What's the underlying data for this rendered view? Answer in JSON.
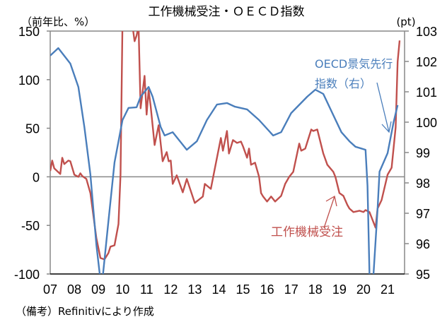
{
  "chart_data": {
    "type": "line",
    "title": "工作機械受注・ＯＥＣＤ指数",
    "ylabel_left": "（前年比、%）",
    "ylabel_right": "(pt)",
    "ylim_left": [
      -100,
      150
    ],
    "ylim_right": [
      95,
      103
    ],
    "yticks_left": [
      "150",
      "100",
      "50",
      "0",
      "-50",
      "-100"
    ],
    "yticks_right": [
      "103",
      "102",
      "101",
      "100",
      "99",
      "98",
      "97",
      "96",
      "95"
    ],
    "xticks": [
      "07",
      "08",
      "09",
      "10",
      "11",
      "12",
      "13",
      "14",
      "15",
      "16",
      "17",
      "18",
      "19",
      "20",
      "21"
    ],
    "footnote": "（備考）Refinitivにより作成",
    "grid": false,
    "series": [
      {
        "name": "工作機械受注",
        "axis": "left",
        "color": "#c0504d",
        "annotation": "工作機械受注",
        "points": [
          [
            "2007-01",
            6.0
          ],
          [
            "2007-02",
            16.7
          ],
          [
            "2007-03",
            8.7
          ],
          [
            "2007-06",
            2.9
          ],
          [
            "2007-07",
            19.6
          ],
          [
            "2007-08",
            13.1
          ],
          [
            "2007-10",
            16.7
          ],
          [
            "2007-11",
            16.0
          ],
          [
            "2008-01",
            2.2
          ],
          [
            "2008-03",
            0
          ],
          [
            "2008-04",
            3.6
          ],
          [
            "2008-05",
            0.7
          ],
          [
            "2008-07",
            -2.2
          ],
          [
            "2008-09",
            -16.7
          ],
          [
            "2008-12",
            -63.2
          ],
          [
            "2009-02",
            -83.6
          ],
          [
            "2009-04",
            -85.0
          ],
          [
            "2009-06",
            -78.5
          ],
          [
            "2009-07",
            -71.9
          ],
          [
            "2009-09",
            -70.5
          ],
          [
            "2009-11",
            -48.7
          ],
          [
            "2009-12",
            2.2
          ],
          [
            "2010-01",
            160
          ],
          [
            "2010-03",
            180
          ],
          [
            "2010-05",
            170
          ],
          [
            "2010-06",
            155
          ],
          [
            "2010-07",
            139.5
          ],
          [
            "2010-08",
            145.3
          ],
          [
            "2010-09",
            155
          ],
          [
            "2010-10",
            70.5
          ],
          [
            "2010-12",
            103.9
          ],
          [
            "2011-01",
            64.0
          ],
          [
            "2011-02",
            89.4
          ],
          [
            "2011-03",
            72.7
          ],
          [
            "2011-05",
            32.7
          ],
          [
            "2011-07",
            53.1
          ],
          [
            "2011-09",
            16.0
          ],
          [
            "2011-11",
            25.4
          ],
          [
            "2011-12",
            16.0
          ],
          [
            "2012-01",
            16.7
          ],
          [
            "2012-02",
            -7.3
          ],
          [
            "2012-04",
            1.5
          ],
          [
            "2012-07",
            -16.0
          ],
          [
            "2012-09",
            -2.2
          ],
          [
            "2013-01",
            -26.9
          ],
          [
            "2013-05",
            -20.3
          ],
          [
            "2013-06",
            -7.3
          ],
          [
            "2013-09",
            -12.4
          ],
          [
            "2013-11",
            8.7
          ],
          [
            "2014-02",
            40.0
          ],
          [
            "2014-03",
            26.9
          ],
          [
            "2014-05",
            47.2
          ],
          [
            "2014-06",
            24.0
          ],
          [
            "2014-08",
            37.8
          ],
          [
            "2014-10",
            34.9
          ],
          [
            "2014-12",
            36.3
          ],
          [
            "2015-01",
            31.3
          ],
          [
            "2015-03",
            19.6
          ],
          [
            "2015-04",
            29.1
          ],
          [
            "2015-05",
            12.4
          ],
          [
            "2015-07",
            14.5
          ],
          [
            "2015-09",
            0
          ],
          [
            "2015-10",
            -16.7
          ],
          [
            "2015-11",
            -20.3
          ],
          [
            "2016-01",
            -25.4
          ],
          [
            "2016-03",
            -20.3
          ],
          [
            "2016-05",
            -25.4
          ],
          [
            "2016-08",
            -19.6
          ],
          [
            "2016-10",
            -7.3
          ],
          [
            "2016-12",
            0
          ],
          [
            "2017-02",
            5.1
          ],
          [
            "2017-05",
            34.2
          ],
          [
            "2017-06",
            26.9
          ],
          [
            "2017-08",
            29.1
          ],
          [
            "2017-11",
            48.7
          ],
          [
            "2017-12",
            47.2
          ],
          [
            "2018-02",
            48.7
          ],
          [
            "2018-05",
            24.0
          ],
          [
            "2018-07",
            12.4
          ],
          [
            "2018-10",
            5.1
          ],
          [
            "2018-11",
            0
          ],
          [
            "2019-01",
            -16.7
          ],
          [
            "2019-03",
            -19.6
          ],
          [
            "2019-05",
            -29.1
          ],
          [
            "2019-06",
            -32.7
          ],
          [
            "2019-08",
            -36.3
          ],
          [
            "2019-11",
            -34.9
          ],
          [
            "2020-01",
            -36.3
          ],
          [
            "2020-02",
            -34.2
          ],
          [
            "2020-04",
            -36.3
          ],
          [
            "2020-07",
            -52.3
          ],
          [
            "2020-08",
            -32.7
          ],
          [
            "2020-10",
            -24.0
          ],
          [
            "2021-01",
            2.2
          ],
          [
            "2021-03",
            9.4
          ],
          [
            "2021-05",
            50.9
          ],
          [
            "2021-06",
            118.5
          ],
          [
            "2021-07",
            140.3
          ]
        ]
      },
      {
        "name": "OECD景気先行指数（右）",
        "axis": "right",
        "color": "#4a7ebb",
        "annotation_lines": [
          "OECD景気先行",
          "指数（右）"
        ],
        "points": [
          [
            "2007-01",
            102.19
          ],
          [
            "2007-05",
            102.44
          ],
          [
            "2007-11",
            101.93
          ],
          [
            "2008-03",
            101.16
          ],
          [
            "2008-06",
            99.84
          ],
          [
            "2008-09",
            98.28
          ],
          [
            "2008-12",
            95.95
          ],
          [
            "2009-02",
            94.8
          ],
          [
            "2009-03",
            94.8
          ],
          [
            "2009-06",
            96.74
          ],
          [
            "2009-09",
            98.67
          ],
          [
            "2010-01",
            100.07
          ],
          [
            "2010-04",
            100.47
          ],
          [
            "2010-08",
            100.49
          ],
          [
            "2010-10",
            100.84
          ],
          [
            "2011-02",
            101.16
          ],
          [
            "2011-04",
            100.84
          ],
          [
            "2011-08",
            99.84
          ],
          [
            "2011-10",
            99.56
          ],
          [
            "2012-02",
            99.67
          ],
          [
            "2012-05",
            99.42
          ],
          [
            "2012-09",
            99.09
          ],
          [
            "2013-02",
            99.37
          ],
          [
            "2013-07",
            100.07
          ],
          [
            "2013-12",
            100.58
          ],
          [
            "2014-05",
            100.63
          ],
          [
            "2014-09",
            100.51
          ],
          [
            "2015-03",
            100.42
          ],
          [
            "2015-09",
            100.07
          ],
          [
            "2016-04",
            99.56
          ],
          [
            "2016-08",
            99.67
          ],
          [
            "2017-01",
            100.3
          ],
          [
            "2017-09",
            100.84
          ],
          [
            "2018-01",
            101.07
          ],
          [
            "2018-05",
            100.93
          ],
          [
            "2018-10",
            100.23
          ],
          [
            "2019-02",
            99.67
          ],
          [
            "2019-06",
            99.37
          ],
          [
            "2019-09",
            99.19
          ],
          [
            "2020-02",
            99.09
          ],
          [
            "2020-03",
            97.91
          ],
          [
            "2020-04",
            95.0
          ],
          [
            "2020-05",
            94.0
          ],
          [
            "2020-06",
            95.0
          ],
          [
            "2020-08",
            97.12
          ],
          [
            "2020-09",
            98.37
          ],
          [
            "2021-01",
            98.98
          ],
          [
            "2021-04",
            100.0
          ],
          [
            "2021-06",
            100.56
          ]
        ]
      }
    ]
  }
}
